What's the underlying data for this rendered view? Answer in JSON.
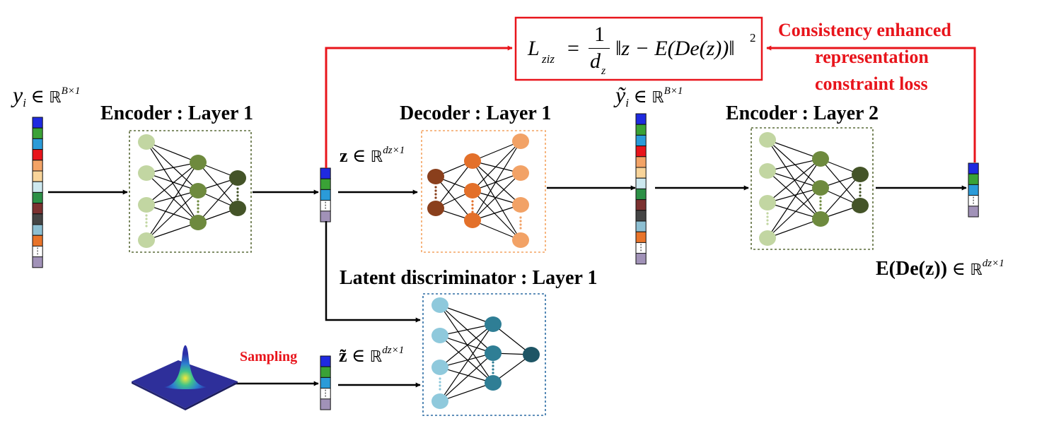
{
  "labels": {
    "enc1_title": "Encoder : Layer 1",
    "dec1_title": "Decoder : Layer 1",
    "enc2_title": "Encoder : Layer 2",
    "disc_title": "Latent discriminator : Layer 1",
    "sampling": "Sampling",
    "constraint_l1": "Consistency enhanced",
    "constraint_l2": "representation",
    "constraint_l3": "constraint loss"
  },
  "math": {
    "yi_sym": "y",
    "yi_sub": "i",
    "member": "∈",
    "reals": "ℝ",
    "yi_dim": "B×1",
    "z_sym": "z",
    "z_dim": "dz×1",
    "zt_sym": "z̃",
    "yt_sym": "ỹ",
    "ede_text": "E(De(z))",
    "loss_L": "L",
    "loss_sub": "ziz",
    "loss_eq": "=",
    "loss_num": "1",
    "loss_den": "d",
    "loss_den_sub": "z",
    "loss_body": "‖z − E(De(z))‖",
    "loss_pow": "2"
  },
  "colors": {
    "red_line": "#e8141b",
    "enc1_box": "#5a6b38",
    "dec1_box": "#f4a360",
    "disc_box": "#2b6ca3",
    "vec": [
      "#1f2ae0",
      "#3aa236",
      "#2b9bd8",
      "#e8141b",
      "#f3a366",
      "#f8d49a",
      "#cde8ef",
      "#2c9046",
      "#7c3130",
      "#454545",
      "#8dbfd2",
      "#e8742a"
    ],
    "vec_last": "#a192b8"
  }
}
